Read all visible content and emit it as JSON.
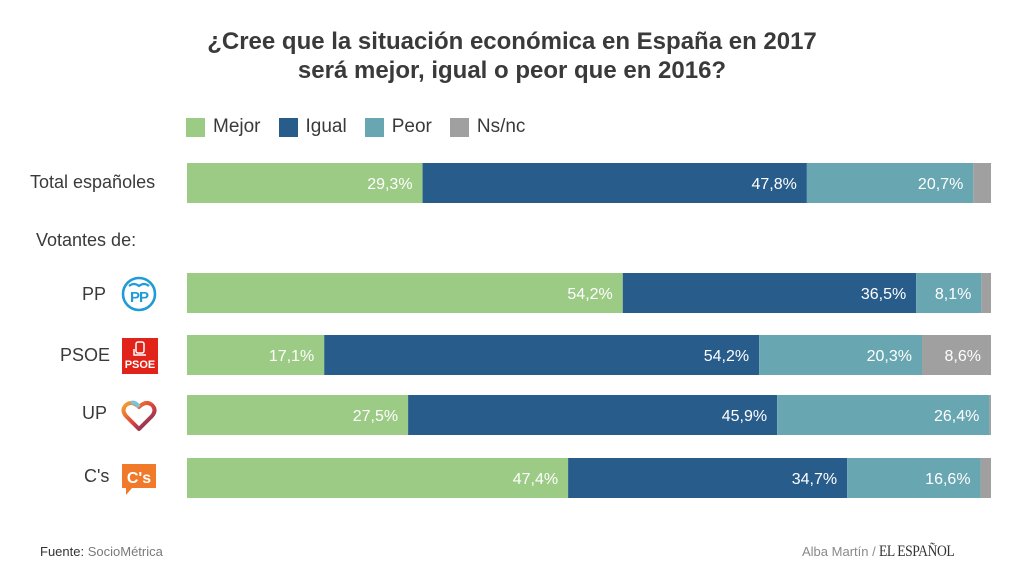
{
  "chart_data": {
    "type": "bar",
    "orientation": "horizontal",
    "stacked": true,
    "title_lines": [
      "¿Cree que la situación económica en España en 2017",
      "será mejor, igual o peor que en 2016?"
    ],
    "legend_position": "top-left",
    "grid": false,
    "xlim": [
      0,
      100
    ],
    "series": [
      {
        "name": "Mejor",
        "color": "#9ccb86"
      },
      {
        "name": "Igual",
        "color": "#285c8a"
      },
      {
        "name": "Peor",
        "color": "#68a6b2"
      },
      {
        "name": "Ns/nc",
        "color": "#a0a0a0"
      }
    ],
    "section_label": "Votantes de:",
    "rows": [
      {
        "category": "Total españoles",
        "party": null,
        "values": [
          29.3,
          47.8,
          20.7,
          2.2
        ],
        "labels": [
          "29,3%",
          "47,8%",
          "20,7%",
          ""
        ]
      },
      {
        "category": "PP",
        "party": "pp-logo-icon",
        "values": [
          54.2,
          36.5,
          8.1,
          1.2
        ],
        "labels": [
          "54,2%",
          "36,5%",
          "8,1%",
          ""
        ]
      },
      {
        "category": "PSOE",
        "party": "psoe-logo-icon",
        "values": [
          17.1,
          54.2,
          20.3,
          8.6
        ],
        "labels": [
          "17,1%",
          "54,2%",
          "20,3%",
          "8,6%"
        ]
      },
      {
        "category": "UP",
        "party": "up-heart-logo-icon",
        "values": [
          27.5,
          45.9,
          26.4,
          0.2
        ],
        "labels": [
          "27,5%",
          "45,9%",
          "26,4%",
          ""
        ]
      },
      {
        "category": "C's",
        "party": "cs-logo-icon",
        "values": [
          47.4,
          34.7,
          16.6,
          1.3
        ],
        "labels": [
          "47,4%",
          "34,7%",
          "16,6%",
          ""
        ]
      }
    ]
  },
  "footer": {
    "source_label": "Fuente:",
    "source_value": "SocioMétrica",
    "author": "Alba Martín /",
    "brand": "EL ESPAÑOL"
  }
}
